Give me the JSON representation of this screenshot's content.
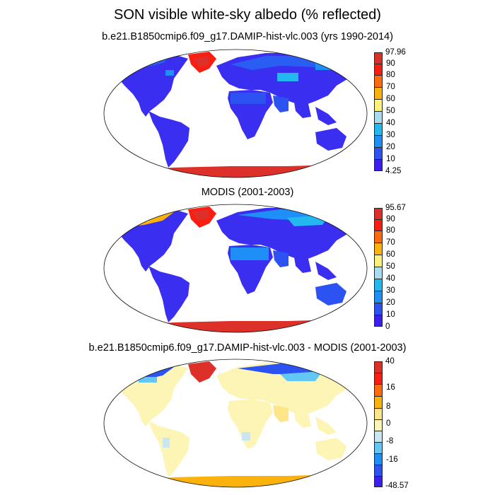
{
  "title": "SON visible white-sky albedo (% reflected)",
  "panels": [
    {
      "id": "model",
      "subtitle": "b.e21.B1850cmip6.f09_g17.DAMIP-hist-vlc.003 (yrs 1990-2014)",
      "colorbar_colors": [
        "#dd3029",
        "#fa1e12",
        "#fd6b0e",
        "#fcb20d",
        "#fcf27c",
        "#a9dcee",
        "#24b8f1",
        "#1e8ff6",
        "#2d52f2",
        "#3b1ef2"
      ],
      "colorbar_labels": [
        "97.96",
        "90",
        "80",
        "70",
        "60",
        "50",
        "40",
        "30",
        "20",
        "10",
        "4.25"
      ]
    },
    {
      "id": "obs",
      "subtitle": "MODIS (2001-2003)",
      "colorbar_colors": [
        "#dd3029",
        "#fa1e12",
        "#fd6b0e",
        "#fcb20d",
        "#fcf27c",
        "#a9dcee",
        "#24b8f1",
        "#1e8ff6",
        "#2d52f2",
        "#3b1ef2"
      ],
      "colorbar_labels": [
        "95.67",
        "90",
        "80",
        "70",
        "60",
        "50",
        "40",
        "30",
        "20",
        "10",
        "0"
      ]
    },
    {
      "id": "diff",
      "subtitle": "b.e21.B1850cmip6.f09_g17.DAMIP-hist-vlc.003 - MODIS (2001-2003)",
      "colorbar_colors": [
        "#dd3029",
        "#fa1e12",
        "#fd6b0e",
        "#fcb20d",
        "#fee58a",
        "#fdf5b5",
        "#c9e6f2",
        "#64c7f3",
        "#1e8ff6",
        "#2d52f2",
        "#3b1ef2"
      ],
      "colorbar_labels": [
        "40",
        "",
        "16",
        "",
        "8",
        "",
        "0",
        "",
        "-8",
        "",
        "-16",
        "-48.57"
      ]
    }
  ]
}
